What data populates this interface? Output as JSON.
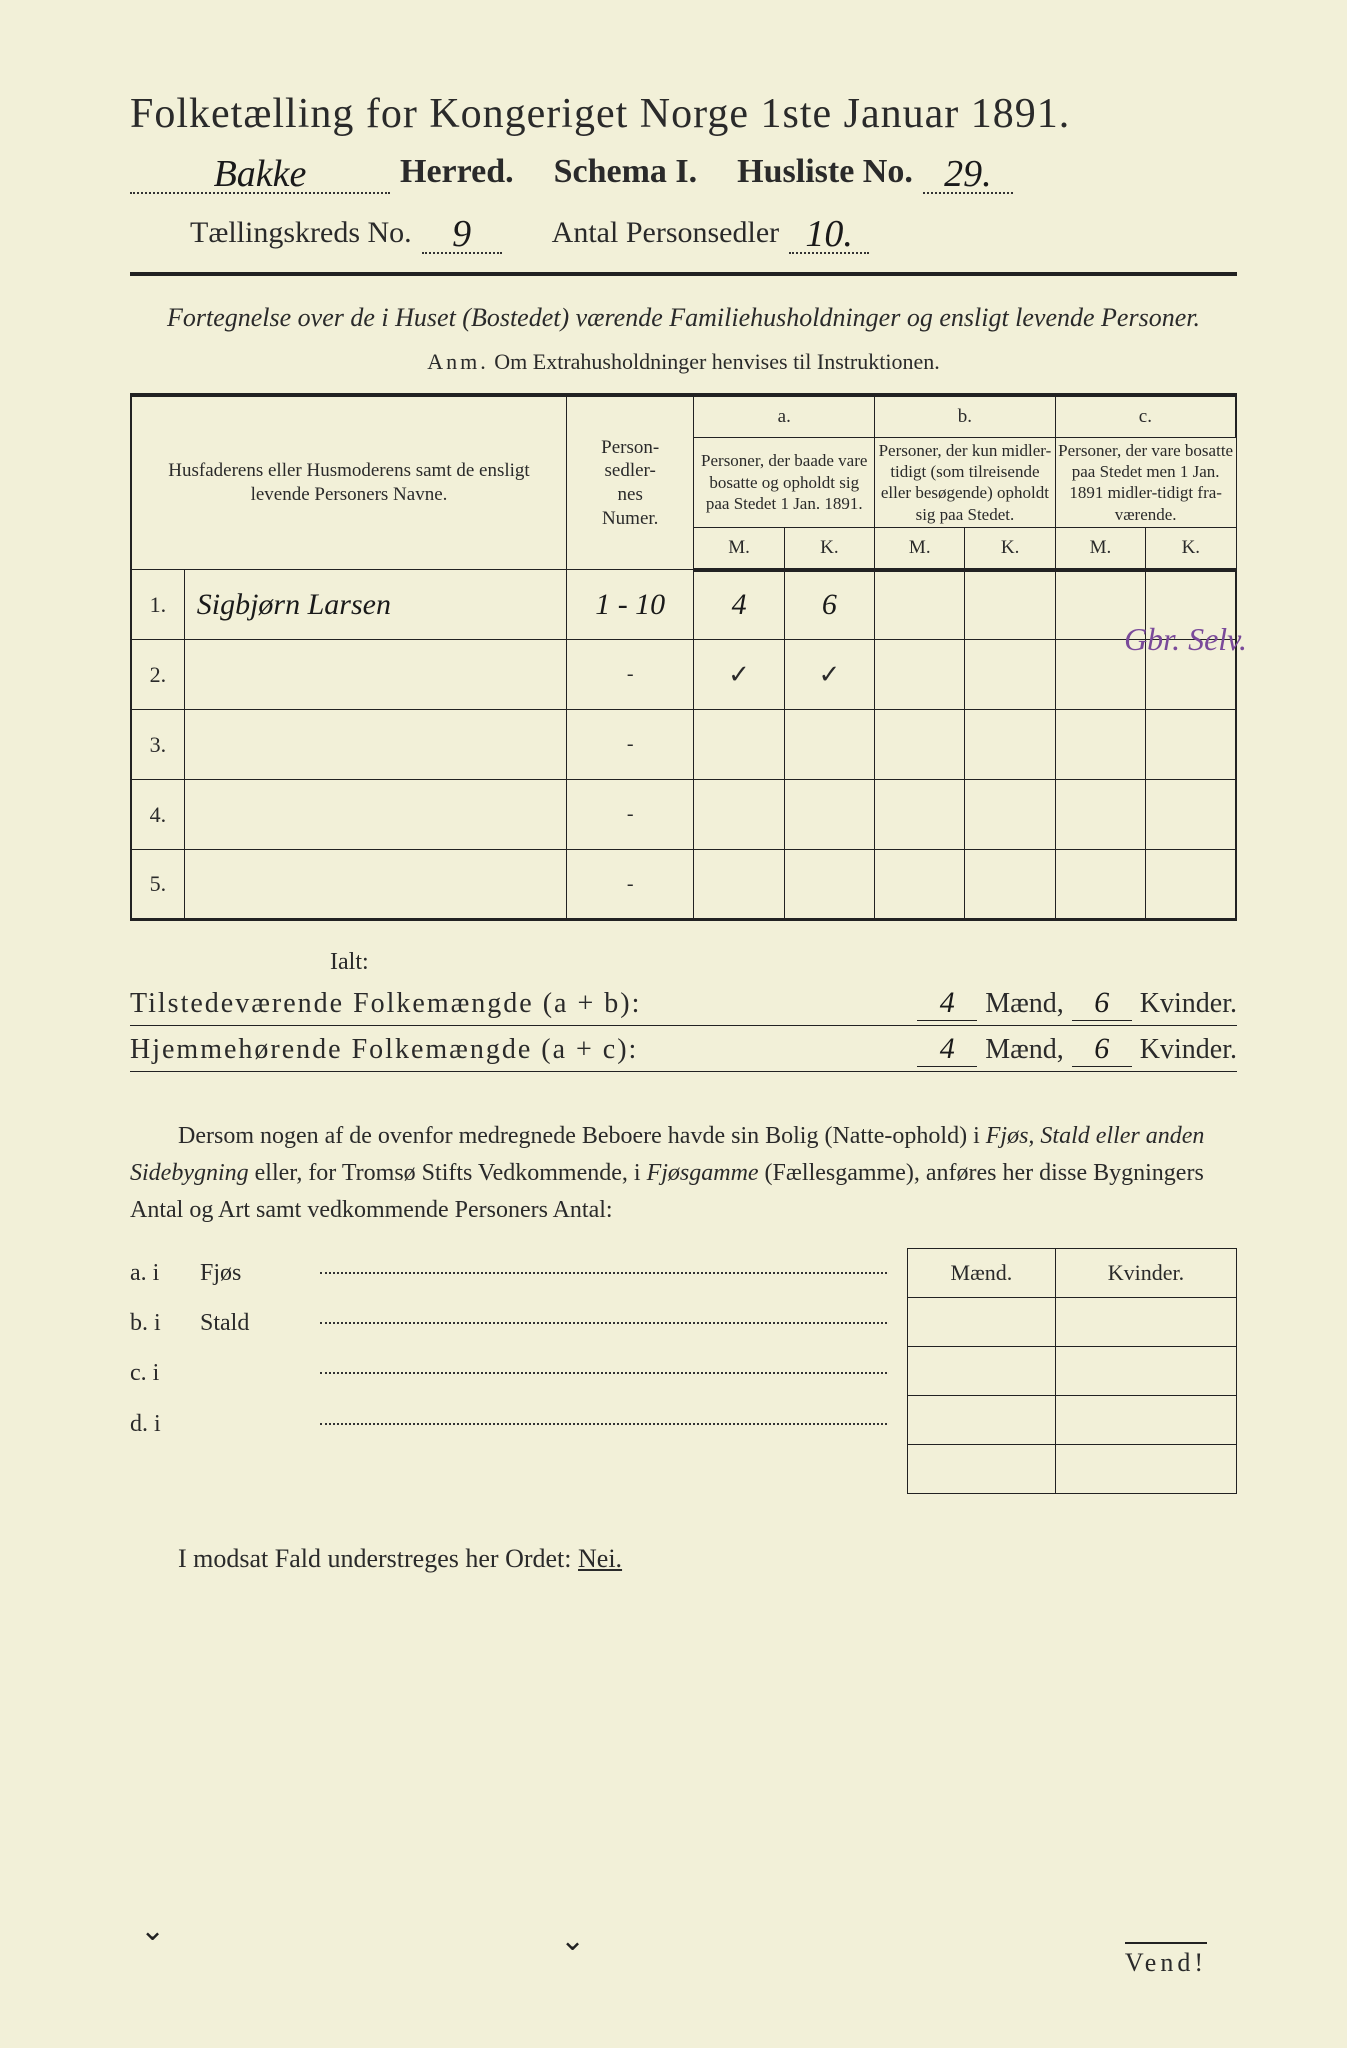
{
  "header": {
    "title": "Folketælling for Kongeriget Norge 1ste Januar 1891.",
    "herred_value": "Bakke",
    "herred_label": "Herred.",
    "schema_label": "Schema I.",
    "husliste_label": "Husliste No.",
    "husliste_value": "29.",
    "kreds_label": "Tællingskreds No.",
    "kreds_value": "9",
    "antal_label": "Antal Personsedler",
    "antal_value": "10."
  },
  "subhead": {
    "line": "Fortegnelse over de i Huset (Bostedet) værende Familiehusholdninger og ensligt levende Personer.",
    "anm_label": "Anm.",
    "anm_text": "Om Extrahusholdninger henvises til Instruktionen."
  },
  "table": {
    "col_name": "Husfaderens eller Husmoderens samt de ensligt levende Personers Navne.",
    "col_ps": "Person-\nsedler-\nnes\nNumer.",
    "col_a_top": "a.",
    "col_a": "Personer, der baade vare bosatte og opholdt sig paa Stedet 1 Jan. 1891.",
    "col_b_top": "b.",
    "col_b": "Personer, der kun midler-tidigt (som tilreisende eller besøgende) opholdt sig paa Stedet.",
    "col_c_top": "c.",
    "col_c": "Personer, der vare bosatte paa Stedet men 1 Jan. 1891 midler-tidigt fra-værende.",
    "mk_m": "M.",
    "mk_k": "K.",
    "rows": [
      {
        "num": "1.",
        "name": "Sigbjørn Larsen",
        "ps": "1 - 10",
        "a_m": "4",
        "a_k": "6",
        "b_m": "",
        "b_k": "",
        "c_m": "",
        "c_k": "",
        "margin": "Gbr. Selv."
      },
      {
        "num": "2.",
        "name": "",
        "ps": "-",
        "a_m": "✓",
        "a_k": "✓",
        "b_m": "",
        "b_k": "",
        "c_m": "",
        "c_k": "",
        "margin": ""
      },
      {
        "num": "3.",
        "name": "",
        "ps": "-",
        "a_m": "",
        "a_k": "",
        "b_m": "",
        "b_k": "",
        "c_m": "",
        "c_k": "",
        "margin": ""
      },
      {
        "num": "4.",
        "name": "",
        "ps": "-",
        "a_m": "",
        "a_k": "",
        "b_m": "",
        "b_k": "",
        "c_m": "",
        "c_k": "",
        "margin": ""
      },
      {
        "num": "5.",
        "name": "",
        "ps": "-",
        "a_m": "",
        "a_k": "",
        "b_m": "",
        "b_k": "",
        "c_m": "",
        "c_k": "",
        "margin": ""
      }
    ]
  },
  "totals": {
    "ialt": "Ialt:",
    "present_label": "Tilstedeværende Folkemængde (a + b):",
    "home_label": "Hjemmehørende Folkemængde (a + c):",
    "present_m": "4",
    "present_k": "6",
    "home_m": "4",
    "home_k": "6",
    "maend": "Mænd,",
    "kvinder": "Kvinder."
  },
  "para": {
    "text1": "Dersom nogen af de ovenfor medregnede Beboere havde sin Bolig (Natte-ophold) i ",
    "it1": "Fjøs, Stald eller anden Sidebygning",
    "text2": " eller, for Tromsø Stifts Vedkommende, i ",
    "it2": "Fjøsgamme",
    "text3": " (Fællesgamme), anføres her disse Bygningers Antal og Art samt vedkommende Personers Antal:"
  },
  "sub": {
    "head_m": "Mænd.",
    "head_k": "Kvinder.",
    "rows": [
      {
        "lead": "a.  i",
        "word": "Fjøs"
      },
      {
        "lead": "b.  i",
        "word": "Stald"
      },
      {
        "lead": "c.  i",
        "word": ""
      },
      {
        "lead": "d.  i",
        "word": ""
      }
    ]
  },
  "nei": {
    "text": "I modsat Fald understreges her Ordet: ",
    "word": "Nei."
  },
  "footer": {
    "vend": "Vend!"
  }
}
